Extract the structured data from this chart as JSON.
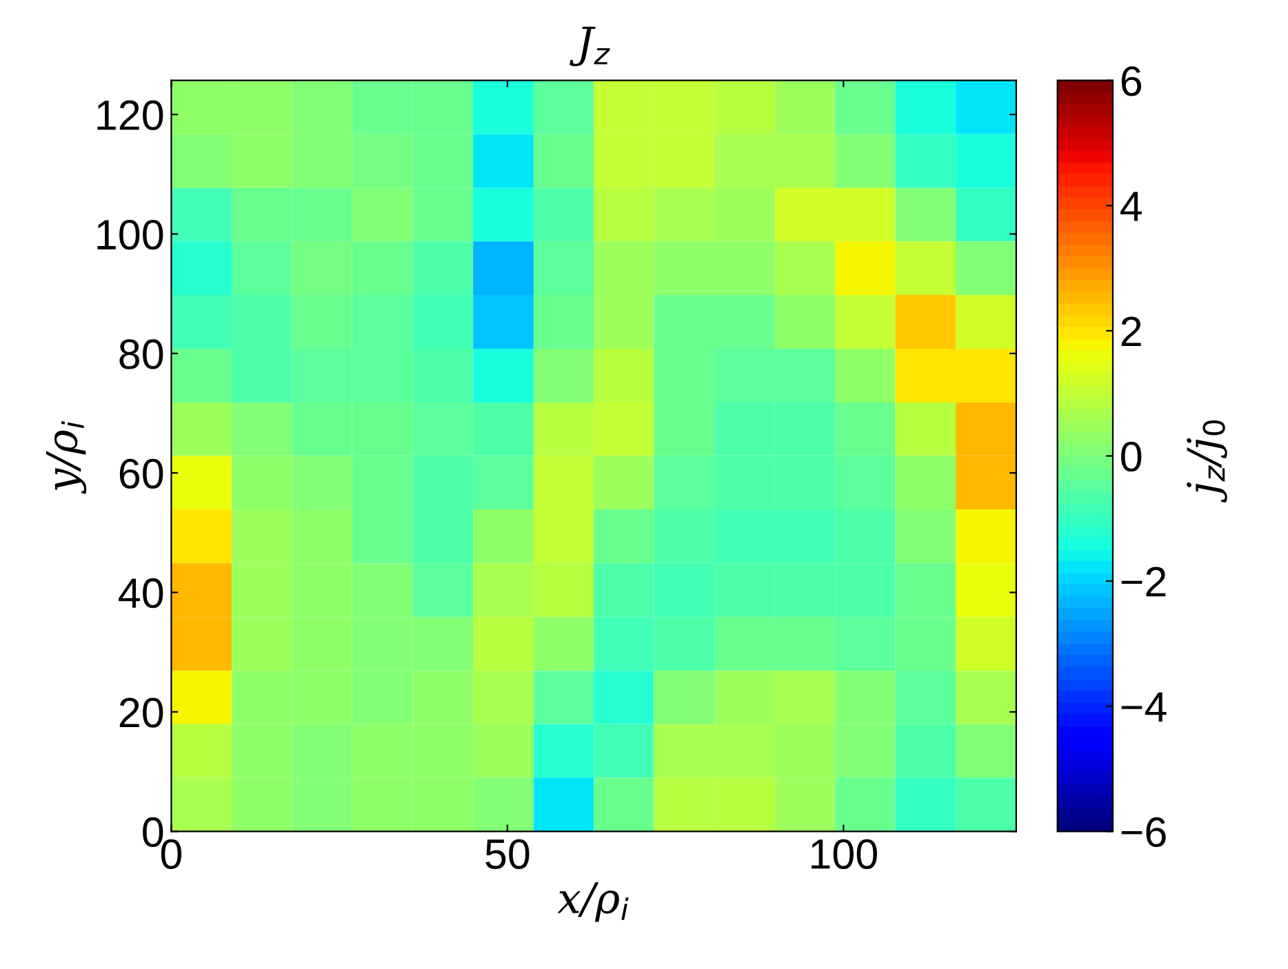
{
  "chart_data": {
    "type": "heatmap",
    "title": "J$_{z}$",
    "xlabel": "x/ρ$_{i}$",
    "ylabel": "y/ρ$_{i}$",
    "clabel": "j$_{z}$/j$_{0}$",
    "x": [
      4.5,
      13.5,
      22.4,
      31.4,
      40.4,
      49.4,
      58.4,
      67.3,
      76.3,
      85.3,
      94.3,
      103.2,
      112.2,
      121.2
    ],
    "y": [
      121.2,
      112.2,
      103.2,
      94.3,
      85.3,
      76.3,
      67.3,
      58.4,
      49.4,
      40.4,
      31.4,
      22.4,
      13.5,
      4.5
    ],
    "xlim": [
      0,
      125.7
    ],
    "xticks": [
      0,
      50,
      100
    ],
    "ylim": [
      0,
      125.7
    ],
    "yticks": [
      0,
      20,
      40,
      60,
      80,
      100,
      120
    ],
    "clim": [
      -6,
      6
    ],
    "cticks": [
      -6,
      -4,
      -2,
      0,
      2,
      4,
      6
    ],
    "cells": [
      [
        0.2,
        0.3,
        0,
        -0.2,
        -0.3,
        -1.5,
        -0.5,
        1.0,
        1.1,
        0.8,
        0.5,
        -0.3,
        -1.5,
        -1.8
      ],
      [
        0,
        0.2,
        0,
        -0.1,
        -0.2,
        -1.8,
        -0.3,
        1.0,
        1.0,
        0.7,
        0.6,
        0,
        -1.0,
        -1.5
      ],
      [
        -0.8,
        -0.3,
        -0.2,
        0,
        -0.3,
        -1.5,
        -0.6,
        0.8,
        0.7,
        0.5,
        1.2,
        1.3,
        0,
        -1.0
      ],
      [
        -1.2,
        -0.5,
        -0.1,
        -0.3,
        -0.6,
        -2.4,
        -0.5,
        0.5,
        0.2,
        0.2,
        0.6,
        1.8,
        1.0,
        0
      ],
      [
        -0.8,
        -0.7,
        -0.3,
        -0.5,
        -0.8,
        -2.2,
        -0.3,
        0.5,
        -0.2,
        -0.3,
        0.2,
        1.0,
        2.3,
        1.2
      ],
      [
        -0.2,
        -0.6,
        -0.4,
        -0.5,
        -0.6,
        -1.5,
        0,
        0.8,
        -0.2,
        -0.5,
        -0.4,
        0.3,
        2.0,
        2.0
      ],
      [
        0.4,
        0,
        -0.2,
        -0.3,
        -0.5,
        -0.6,
        0.8,
        1.0,
        -0.3,
        -0.6,
        -0.6,
        -0.3,
        0.8,
        2.5
      ],
      [
        1.5,
        0.3,
        0.1,
        -0.3,
        -0.7,
        -0.5,
        1.0,
        0.4,
        -0.5,
        -0.7,
        -0.7,
        -0.5,
        0.2,
        2.5
      ],
      [
        2.0,
        0.5,
        0.2,
        -0.2,
        -0.6,
        0.2,
        1.1,
        -0.2,
        -0.7,
        -0.8,
        -0.8,
        -0.6,
        0,
        1.8
      ],
      [
        2.5,
        0.4,
        0.2,
        0,
        -0.5,
        0.6,
        0.8,
        -0.6,
        -0.8,
        -0.7,
        -0.7,
        -0.6,
        -0.2,
        1.5
      ],
      [
        2.5,
        0.4,
        0.3,
        0.1,
        0,
        0.8,
        0.2,
        -0.8,
        -0.6,
        -0.2,
        -0.3,
        -0.5,
        -0.3,
        1.2
      ],
      [
        1.8,
        0.3,
        0.2,
        0.1,
        0.3,
        0.7,
        -0.5,
        -1.2,
        0,
        0.4,
        0.6,
        0,
        -0.4,
        0.6
      ],
      [
        0.8,
        0.2,
        0.1,
        0.2,
        0.3,
        0.4,
        -1.2,
        -0.8,
        0.6,
        0.7,
        0.5,
        0,
        -0.6,
        0
      ],
      [
        0.6,
        0.2,
        0,
        0.2,
        0.3,
        0,
        -1.8,
        -0.3,
        0.8,
        0.8,
        0.4,
        -0.2,
        -1.0,
        -0.6
      ]
    ]
  }
}
